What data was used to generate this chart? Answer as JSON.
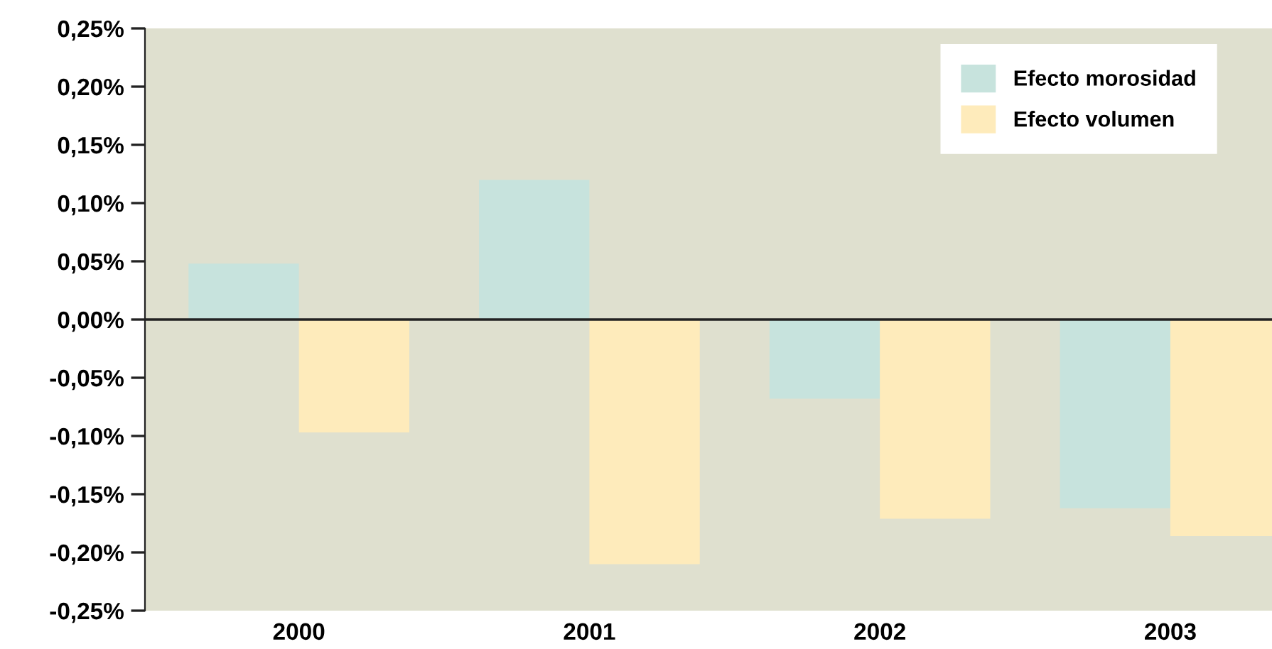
{
  "chart_data": {
    "type": "bar",
    "categories": [
      "2000",
      "2001",
      "2002",
      "2003"
    ],
    "series": [
      {
        "name": "Efecto morosidad",
        "color": "#c7e3dd",
        "values": [
          0.048,
          0.12,
          -0.068,
          -0.162
        ]
      },
      {
        "name": "Efecto volumen",
        "color": "#feebbb",
        "values": [
          -0.097,
          -0.21,
          -0.171,
          -0.186
        ]
      }
    ],
    "ylim": [
      -0.25,
      0.25
    ],
    "yticks": [
      {
        "value": -0.25,
        "label": "-0,25%"
      },
      {
        "value": -0.2,
        "label": "-0,20%"
      },
      {
        "value": -0.15,
        "label": "-0,15%"
      },
      {
        "value": -0.1,
        "label": "-0,10%"
      },
      {
        "value": -0.05,
        "label": "-0,05%"
      },
      {
        "value": 0,
        "label": "0,00%"
      },
      {
        "value": 0.05,
        "label": "0,05%"
      },
      {
        "value": 0.1,
        "label": "0,10%"
      },
      {
        "value": 0.15,
        "label": "0,15%"
      },
      {
        "value": 0.2,
        "label": "0,20%"
      },
      {
        "value": 0.25,
        "label": "0,25%"
      }
    ],
    "legend": "top right"
  }
}
